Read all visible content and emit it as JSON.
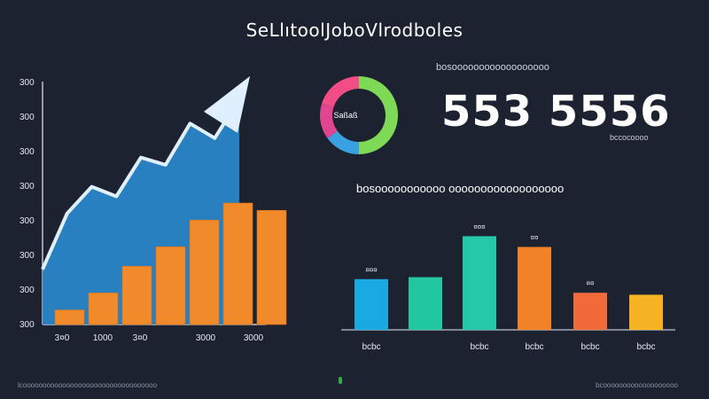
{
  "title": "SeLlıtoolJoboVlrodboles",
  "kpi": {
    "header": "bosoooooooooooooooooo",
    "value": "553 5556",
    "caption": "bccocoooo",
    "donut_label": "Saßaß"
  },
  "bar_chart_title": "bosooooooooooo oooooooooooooooooo",
  "footer": {
    "left": "lcoooooooooooooooooooooooooooooooooo",
    "right": "bcooooooooooooooooooo"
  },
  "colors": {
    "background": "#1c2230",
    "area": "#2a86c8",
    "bar_orange": "#f08a2a",
    "arrow": "#dfeffd"
  },
  "chart_data": [
    {
      "type": "area",
      "y_ticks": [
        "300",
        "300",
        "300",
        "300",
        "300",
        "300",
        "300",
        "300"
      ],
      "x_ticks": [
        "3¤0",
        "1000",
        "3¤0",
        "3000",
        "3000"
      ],
      "area_values": [
        0.22,
        0.45,
        0.56,
        0.52,
        0.68,
        0.65,
        0.82,
        0.76,
        0.92
      ],
      "bar_values": [
        0.06,
        0.13,
        0.24,
        0.32,
        0.43,
        0.5,
        0.47
      ],
      "ylim": [
        0,
        1
      ]
    },
    {
      "type": "pie",
      "slices": [
        {
          "name": "green",
          "value": 50,
          "color": "#7ed957"
        },
        {
          "name": "blue",
          "value": 15,
          "color": "#3aa1e0"
        },
        {
          "name": "magenta",
          "value": 15,
          "color": "#e0458f"
        },
        {
          "name": "pink",
          "value": 20,
          "color": "#f24d87"
        }
      ]
    },
    {
      "type": "bar",
      "categories": [
        "bcbc",
        "bcbc",
        "bcbc",
        "bcbc",
        "bcbc",
        "bcbc"
      ],
      "values": [
        0.52,
        0.54,
        0.96,
        0.85,
        0.38,
        0.36
      ],
      "colors": [
        "#1aa9e0",
        "#21c7a0",
        "#23c9a8",
        "#f2822a",
        "#f26a3a",
        "#f5b324"
      ],
      "data_labels": [
        "¤¤¤",
        "",
        "¤¤¤",
        "¤¤",
        "¤¤",
        ""
      ],
      "x_labels": [
        "bcbc",
        "",
        "bcbc",
        "bcbc",
        "bcbc",
        "bcbc"
      ],
      "ylim": [
        0,
        1
      ]
    }
  ]
}
